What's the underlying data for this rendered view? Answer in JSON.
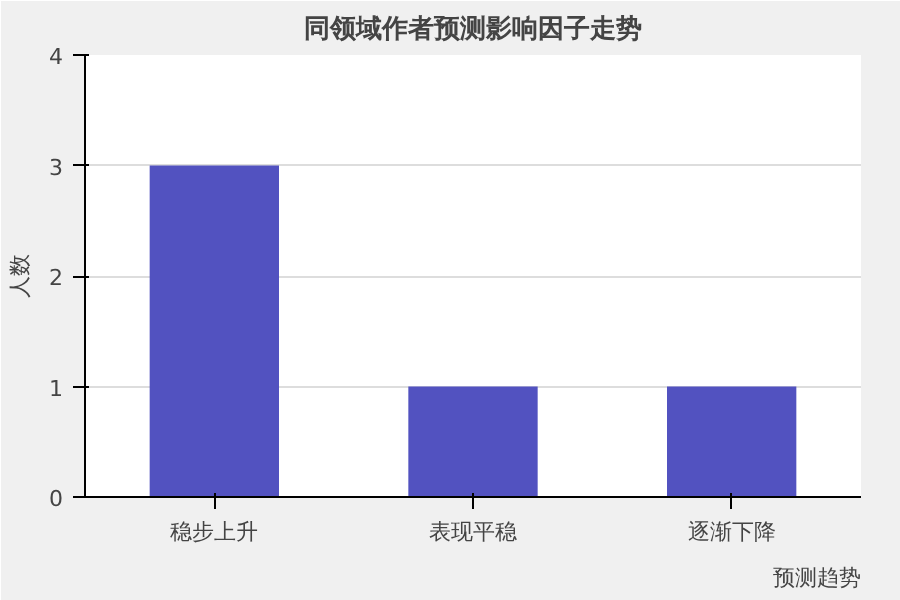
{
  "chart_data": {
    "type": "bar",
    "title": "同领域作者预测影响因子走势",
    "xlabel": "预测趋势",
    "ylabel": "人数",
    "categories": [
      "稳步上升",
      "表现平稳",
      "逐渐下降"
    ],
    "values": [
      3,
      1,
      1
    ],
    "color": "#5252c0",
    "ylim": [
      0,
      4
    ],
    "yticks": [
      0,
      1,
      2,
      3,
      4
    ],
    "grid": "y"
  }
}
